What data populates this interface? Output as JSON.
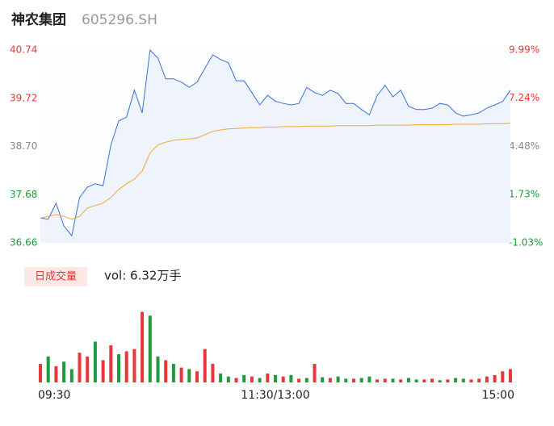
{
  "header": {
    "title": "神农集团",
    "code": "605296.SH"
  },
  "chart_data": [
    {
      "type": "line",
      "series": [
        {
          "color": "#3a6fd8",
          "values": [
            37.19,
            37.16,
            37.5,
            37.02,
            36.81,
            37.62,
            37.84,
            37.91,
            37.87,
            38.73,
            39.24,
            39.32,
            39.89,
            39.41,
            40.74,
            40.57,
            40.13,
            40.13,
            40.06,
            39.95,
            40.06,
            40.35,
            40.64,
            40.54,
            40.47,
            40.09,
            40.09,
            39.84,
            39.58,
            39.78,
            39.66,
            39.61,
            39.58,
            39.61,
            39.95,
            39.84,
            39.78,
            39.89,
            39.82,
            39.61,
            39.61,
            39.48,
            39.37,
            39.78,
            39.99,
            39.75,
            39.89,
            39.55,
            39.48,
            39.48,
            39.51,
            39.61,
            39.58,
            39.41,
            39.34,
            39.37,
            39.41,
            39.51,
            39.58,
            39.65,
            39.89
          ],
          "fill": "#eef3fc"
        },
        {
          "color": "#f0a830",
          "values": [
            37.19,
            37.22,
            37.26,
            37.22,
            37.16,
            37.22,
            37.4,
            37.45,
            37.5,
            37.62,
            37.79,
            37.91,
            38.01,
            38.18,
            38.56,
            38.73,
            38.79,
            38.83,
            38.85,
            38.86,
            38.88,
            38.95,
            39.02,
            39.05,
            39.07,
            39.08,
            39.09,
            39.1,
            39.1,
            39.11,
            39.11,
            39.12,
            39.12,
            39.12,
            39.13,
            39.13,
            39.13,
            39.13,
            39.14,
            39.14,
            39.14,
            39.14,
            39.14,
            39.15,
            39.15,
            39.15,
            39.15,
            39.15,
            39.16,
            39.16,
            39.16,
            39.16,
            39.16,
            39.17,
            39.17,
            39.17,
            39.17,
            39.18,
            39.18,
            39.18,
            39.19
          ]
        }
      ],
      "ylim": [
        36.66,
        40.74
      ],
      "yticks": [
        36.66,
        37.68,
        {
          "value": 38.7,
          "label": "38.70"
        },
        39.72,
        40.74
      ],
      "y2lim": [
        -1.03,
        9.99
      ],
      "y2ticks": [
        {
          "value": -1.03,
          "label": "-1.03%"
        },
        {
          "value": 1.73,
          "label": "1.73%"
        },
        {
          "value": 4.48,
          "label": "4.48%"
        },
        {
          "value": 7.24,
          "label": "7.24%"
        },
        {
          "value": 9.99,
          "label": "9.99%"
        }
      ],
      "up_color": "#e8373b",
      "down_color": "#1e9b3c",
      "flat_color": "#888888"
    },
    {
      "type": "bar",
      "tab_label": "日成交量",
      "annotation": "vol: 6.32万手",
      "categories": [
        "09:30",
        null,
        null,
        null,
        null,
        null,
        null,
        null,
        null,
        null,
        null,
        null,
        null,
        null,
        null,
        null,
        null,
        null,
        null,
        null,
        null,
        null,
        null,
        null,
        null,
        null,
        null,
        null,
        null,
        null,
        "11:30/13:00",
        null,
        null,
        null,
        null,
        null,
        null,
        null,
        null,
        null,
        null,
        null,
        null,
        null,
        null,
        null,
        null,
        null,
        null,
        null,
        null,
        null,
        null,
        null,
        null,
        null,
        null,
        null,
        null,
        null,
        "15:00"
      ],
      "values": [
        25,
        35,
        22,
        28,
        18,
        40,
        35,
        55,
        30,
        50,
        38,
        42,
        45,
        95,
        90,
        35,
        30,
        25,
        20,
        18,
        15,
        45,
        25,
        12,
        8,
        6,
        10,
        8,
        6,
        12,
        10,
        8,
        10,
        5,
        6,
        25,
        7,
        6,
        8,
        5,
        5,
        6,
        8,
        4,
        5,
        5,
        4,
        6,
        4,
        4,
        5,
        3,
        4,
        6,
        5,
        4,
        5,
        8,
        10,
        15,
        18
      ],
      "colors": [
        "#e8373b",
        "#1e9b3c",
        "#e8373b",
        "#1e9b3c",
        "#1e9b3c",
        "#e8373b",
        "#e8373b",
        "#1e9b3c",
        "#e8373b",
        "#e8373b",
        "#1e9b3c",
        "#e8373b",
        "#e8373b",
        "#e8373b",
        "#1e9b3c",
        "#1e9b3c",
        "#e8373b",
        "#1e9b3c",
        "#e8373b",
        "#1e9b3c",
        "#e8373b",
        "#e8373b",
        "#e8373b",
        "#1e9b3c",
        "#1e9b3c",
        "#e8373b",
        "#1e9b3c",
        "#e8373b",
        "#1e9b3c",
        "#e8373b",
        "#1e9b3c",
        "#e8373b",
        "#1e9b3c",
        "#e8373b",
        "#1e9b3c",
        "#e8373b",
        "#1e9b3c",
        "#e8373b",
        "#1e9b3c",
        "#1e9b3c",
        "#e8373b",
        "#1e9b3c",
        "#1e9b3c",
        "#e8373b",
        "#e8373b",
        "#1e9b3c",
        "#e8373b",
        "#1e9b3c",
        "#1e9b3c",
        "#e8373b",
        "#e8373b",
        "#1e9b3c",
        "#e8373b",
        "#1e9b3c",
        "#1e9b3c",
        "#e8373b",
        "#e8373b",
        "#e8373b",
        "#e8373b",
        "#e8373b",
        "#e8373b"
      ],
      "ylim": [
        0,
        100
      ],
      "tab_color": "#e8373b",
      "tab_fill": "#fde8e6"
    }
  ]
}
